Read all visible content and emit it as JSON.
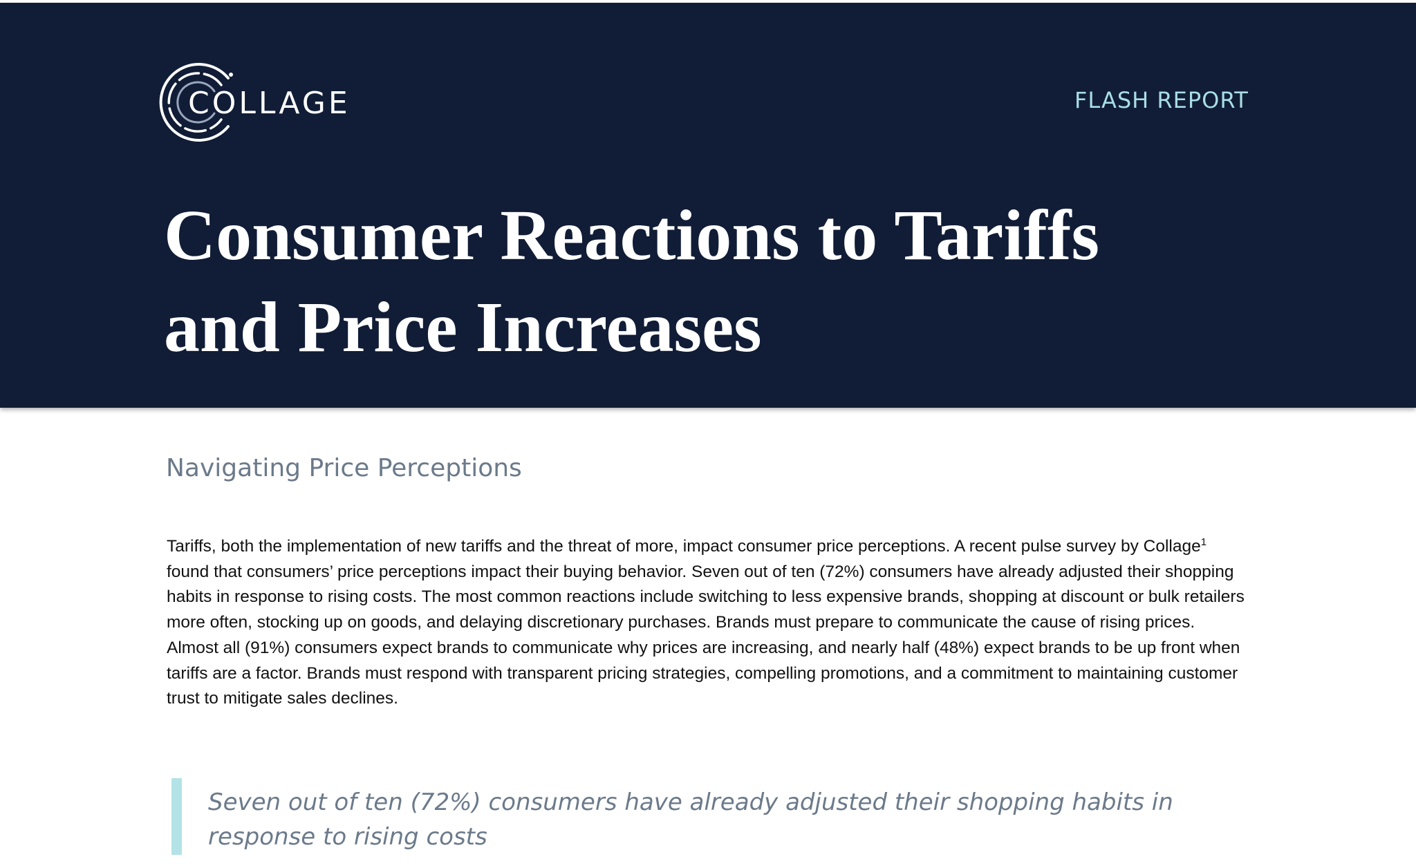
{
  "header": {
    "logo_text": "COLLAGE",
    "label": "FLASH REPORT",
    "title": "Consumer Reactions to Tariffs and Price Increases"
  },
  "section": {
    "heading": "Navigating Price Perceptions",
    "paragraph": {
      "text_before": "Tariffs, both the implementation of new tariffs and the threat of more, impact consumer price perceptions. A recent pulse survey by Collage",
      "footnote": "1",
      "text_after": " found that consumers’ price perceptions impact their buying behavior. Seven out of ten (72%) consumers have already adjusted their shopping habits in response to rising costs. The most common reactions include switching to less expensive brands, shopping at discount or bulk retailers more often, stocking up on goods, and delaying discretionary purchases. Brands must prepare to communicate the cause of rising prices. Almost all (91%) consumers expect brands to communicate why prices are increasing, and nearly half (48%) expect brands to be up front when tariffs are a factor. Brands must respond with transparent pricing strategies, compelling promotions, and a commitment to maintaining customer trust to mitigate sales declines."
    },
    "quote": "Seven out of ten (72%) consumers have already adjusted their shopping habits in response to rising costs"
  }
}
